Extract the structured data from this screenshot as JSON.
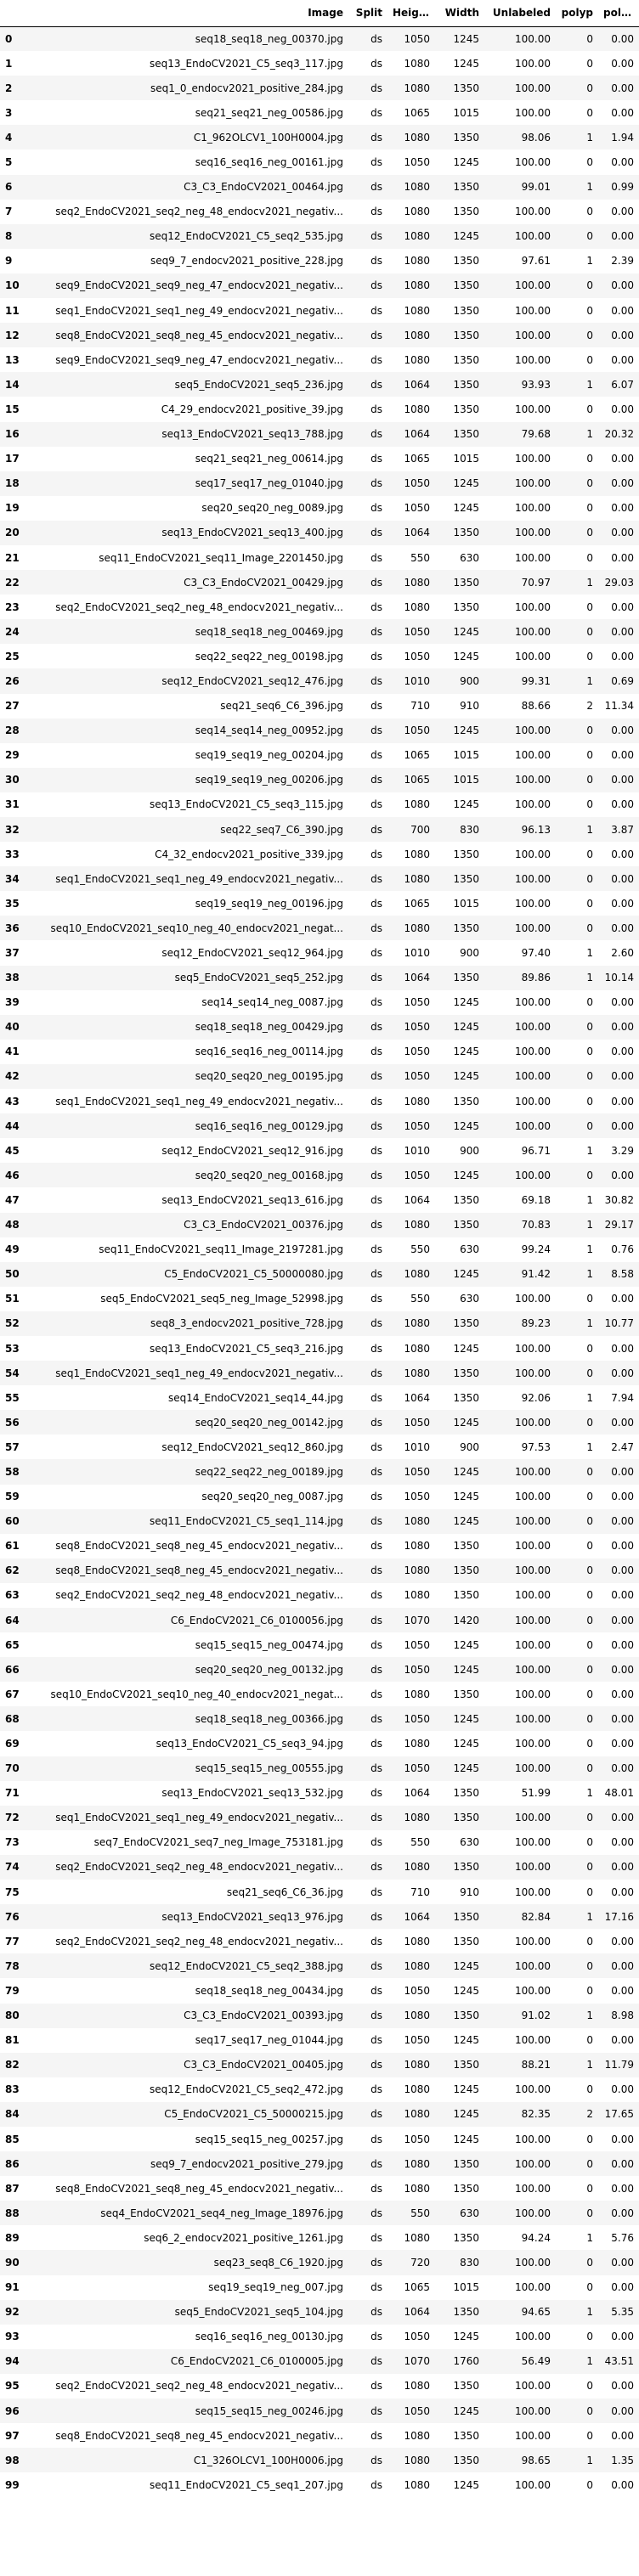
{
  "table": {
    "columns": [
      "",
      "Image",
      "Split",
      "Height",
      "Width",
      "Unlabeled",
      "polyp",
      "polyp"
    ],
    "rows": [
      [
        "0",
        "seq18_seq18_neg_00370.jpg",
        "ds",
        "1050",
        "1245",
        "100.00",
        "0",
        "0.00"
      ],
      [
        "1",
        "seq13_EndoCV2021_C5_seq3_117.jpg",
        "ds",
        "1080",
        "1245",
        "100.00",
        "0",
        "0.00"
      ],
      [
        "2",
        "seq1_0_endocv2021_positive_284.jpg",
        "ds",
        "1080",
        "1350",
        "100.00",
        "0",
        "0.00"
      ],
      [
        "3",
        "seq21_seq21_neg_00586.jpg",
        "ds",
        "1065",
        "1015",
        "100.00",
        "0",
        "0.00"
      ],
      [
        "4",
        "C1_962OLCV1_100H0004.jpg",
        "ds",
        "1080",
        "1350",
        "98.06",
        "1",
        "1.94"
      ],
      [
        "5",
        "seq16_seq16_neg_00161.jpg",
        "ds",
        "1050",
        "1245",
        "100.00",
        "0",
        "0.00"
      ],
      [
        "6",
        "C3_C3_EndoCV2021_00464.jpg",
        "ds",
        "1080",
        "1350",
        "99.01",
        "1",
        "0.99"
      ],
      [
        "7",
        "seq2_EndoCV2021_seq2_neg_48_endocv2021_negativ...",
        "ds",
        "1080",
        "1350",
        "100.00",
        "0",
        "0.00"
      ],
      [
        "8",
        "seq12_EndoCV2021_C5_seq2_535.jpg",
        "ds",
        "1080",
        "1245",
        "100.00",
        "0",
        "0.00"
      ],
      [
        "9",
        "seq9_7_endocv2021_positive_228.jpg",
        "ds",
        "1080",
        "1350",
        "97.61",
        "1",
        "2.39"
      ],
      [
        "10",
        "seq9_EndoCV2021_seq9_neg_47_endocv2021_negativ...",
        "ds",
        "1080",
        "1350",
        "100.00",
        "0",
        "0.00"
      ],
      [
        "11",
        "seq1_EndoCV2021_seq1_neg_49_endocv2021_negativ...",
        "ds",
        "1080",
        "1350",
        "100.00",
        "0",
        "0.00"
      ],
      [
        "12",
        "seq8_EndoCV2021_seq8_neg_45_endocv2021_negativ...",
        "ds",
        "1080",
        "1350",
        "100.00",
        "0",
        "0.00"
      ],
      [
        "13",
        "seq9_EndoCV2021_seq9_neg_47_endocv2021_negativ...",
        "ds",
        "1080",
        "1350",
        "100.00",
        "0",
        "0.00"
      ],
      [
        "14",
        "seq5_EndoCV2021_seq5_236.jpg",
        "ds",
        "1064",
        "1350",
        "93.93",
        "1",
        "6.07"
      ],
      [
        "15",
        "C4_29_endocv2021_positive_39.jpg",
        "ds",
        "1080",
        "1350",
        "100.00",
        "0",
        "0.00"
      ],
      [
        "16",
        "seq13_EndoCV2021_seq13_788.jpg",
        "ds",
        "1064",
        "1350",
        "79.68",
        "1",
        "20.32"
      ],
      [
        "17",
        "seq21_seq21_neg_00614.jpg",
        "ds",
        "1065",
        "1015",
        "100.00",
        "0",
        "0.00"
      ],
      [
        "18",
        "seq17_seq17_neg_01040.jpg",
        "ds",
        "1050",
        "1245",
        "100.00",
        "0",
        "0.00"
      ],
      [
        "19",
        "seq20_seq20_neg_0089.jpg",
        "ds",
        "1050",
        "1245",
        "100.00",
        "0",
        "0.00"
      ],
      [
        "20",
        "seq13_EndoCV2021_seq13_400.jpg",
        "ds",
        "1064",
        "1350",
        "100.00",
        "0",
        "0.00"
      ],
      [
        "21",
        "seq11_EndoCV2021_seq11_Image_2201450.jpg",
        "ds",
        "550",
        "630",
        "100.00",
        "0",
        "0.00"
      ],
      [
        "22",
        "C3_C3_EndoCV2021_00429.jpg",
        "ds",
        "1080",
        "1350",
        "70.97",
        "1",
        "29.03"
      ],
      [
        "23",
        "seq2_EndoCV2021_seq2_neg_48_endocv2021_negativ...",
        "ds",
        "1080",
        "1350",
        "100.00",
        "0",
        "0.00"
      ],
      [
        "24",
        "seq18_seq18_neg_00469.jpg",
        "ds",
        "1050",
        "1245",
        "100.00",
        "0",
        "0.00"
      ],
      [
        "25",
        "seq22_seq22_neg_00198.jpg",
        "ds",
        "1050",
        "1245",
        "100.00",
        "0",
        "0.00"
      ],
      [
        "26",
        "seq12_EndoCV2021_seq12_476.jpg",
        "ds",
        "1010",
        "900",
        "99.31",
        "1",
        "0.69"
      ],
      [
        "27",
        "seq21_seq6_C6_396.jpg",
        "ds",
        "710",
        "910",
        "88.66",
        "2",
        "11.34"
      ],
      [
        "28",
        "seq14_seq14_neg_00952.jpg",
        "ds",
        "1050",
        "1245",
        "100.00",
        "0",
        "0.00"
      ],
      [
        "29",
        "seq19_seq19_neg_00204.jpg",
        "ds",
        "1065",
        "1015",
        "100.00",
        "0",
        "0.00"
      ],
      [
        "30",
        "seq19_seq19_neg_00206.jpg",
        "ds",
        "1065",
        "1015",
        "100.00",
        "0",
        "0.00"
      ],
      [
        "31",
        "seq13_EndoCV2021_C5_seq3_115.jpg",
        "ds",
        "1080",
        "1245",
        "100.00",
        "0",
        "0.00"
      ],
      [
        "32",
        "seq22_seq7_C6_390.jpg",
        "ds",
        "700",
        "830",
        "96.13",
        "1",
        "3.87"
      ],
      [
        "33",
        "C4_32_endocv2021_positive_339.jpg",
        "ds",
        "1080",
        "1350",
        "100.00",
        "0",
        "0.00"
      ],
      [
        "34",
        "seq1_EndoCV2021_seq1_neg_49_endocv2021_negativ...",
        "ds",
        "1080",
        "1350",
        "100.00",
        "0",
        "0.00"
      ],
      [
        "35",
        "seq19_seq19_neg_00196.jpg",
        "ds",
        "1065",
        "1015",
        "100.00",
        "0",
        "0.00"
      ],
      [
        "36",
        "seq10_EndoCV2021_seq10_neg_40_endocv2021_negat...",
        "ds",
        "1080",
        "1350",
        "100.00",
        "0",
        "0.00"
      ],
      [
        "37",
        "seq12_EndoCV2021_seq12_964.jpg",
        "ds",
        "1010",
        "900",
        "97.40",
        "1",
        "2.60"
      ],
      [
        "38",
        "seq5_EndoCV2021_seq5_252.jpg",
        "ds",
        "1064",
        "1350",
        "89.86",
        "1",
        "10.14"
      ],
      [
        "39",
        "seq14_seq14_neg_0087.jpg",
        "ds",
        "1050",
        "1245",
        "100.00",
        "0",
        "0.00"
      ],
      [
        "40",
        "seq18_seq18_neg_00429.jpg",
        "ds",
        "1050",
        "1245",
        "100.00",
        "0",
        "0.00"
      ],
      [
        "41",
        "seq16_seq16_neg_00114.jpg",
        "ds",
        "1050",
        "1245",
        "100.00",
        "0",
        "0.00"
      ],
      [
        "42",
        "seq20_seq20_neg_00195.jpg",
        "ds",
        "1050",
        "1245",
        "100.00",
        "0",
        "0.00"
      ],
      [
        "43",
        "seq1_EndoCV2021_seq1_neg_49_endocv2021_negativ...",
        "ds",
        "1080",
        "1350",
        "100.00",
        "0",
        "0.00"
      ],
      [
        "44",
        "seq16_seq16_neg_00129.jpg",
        "ds",
        "1050",
        "1245",
        "100.00",
        "0",
        "0.00"
      ],
      [
        "45",
        "seq12_EndoCV2021_seq12_916.jpg",
        "ds",
        "1010",
        "900",
        "96.71",
        "1",
        "3.29"
      ],
      [
        "46",
        "seq20_seq20_neg_00168.jpg",
        "ds",
        "1050",
        "1245",
        "100.00",
        "0",
        "0.00"
      ],
      [
        "47",
        "seq13_EndoCV2021_seq13_616.jpg",
        "ds",
        "1064",
        "1350",
        "69.18",
        "1",
        "30.82"
      ],
      [
        "48",
        "C3_C3_EndoCV2021_00376.jpg",
        "ds",
        "1080",
        "1350",
        "70.83",
        "1",
        "29.17"
      ],
      [
        "49",
        "seq11_EndoCV2021_seq11_Image_2197281.jpg",
        "ds",
        "550",
        "630",
        "99.24",
        "1",
        "0.76"
      ],
      [
        "50",
        "C5_EndoCV2021_C5_50000080.jpg",
        "ds",
        "1080",
        "1245",
        "91.42",
        "1",
        "8.58"
      ],
      [
        "51",
        "seq5_EndoCV2021_seq5_neg_Image_52998.jpg",
        "ds",
        "550",
        "630",
        "100.00",
        "0",
        "0.00"
      ],
      [
        "52",
        "seq8_3_endocv2021_positive_728.jpg",
        "ds",
        "1080",
        "1350",
        "89.23",
        "1",
        "10.77"
      ],
      [
        "53",
        "seq13_EndoCV2021_C5_seq3_216.jpg",
        "ds",
        "1080",
        "1245",
        "100.00",
        "0",
        "0.00"
      ],
      [
        "54",
        "seq1_EndoCV2021_seq1_neg_49_endocv2021_negativ...",
        "ds",
        "1080",
        "1350",
        "100.00",
        "0",
        "0.00"
      ],
      [
        "55",
        "seq14_EndoCV2021_seq14_44.jpg",
        "ds",
        "1064",
        "1350",
        "92.06",
        "1",
        "7.94"
      ],
      [
        "56",
        "seq20_seq20_neg_00142.jpg",
        "ds",
        "1050",
        "1245",
        "100.00",
        "0",
        "0.00"
      ],
      [
        "57",
        "seq12_EndoCV2021_seq12_860.jpg",
        "ds",
        "1010",
        "900",
        "97.53",
        "1",
        "2.47"
      ],
      [
        "58",
        "seq22_seq22_neg_00189.jpg",
        "ds",
        "1050",
        "1245",
        "100.00",
        "0",
        "0.00"
      ],
      [
        "59",
        "seq20_seq20_neg_0087.jpg",
        "ds",
        "1050",
        "1245",
        "100.00",
        "0",
        "0.00"
      ],
      [
        "60",
        "seq11_EndoCV2021_C5_seq1_114.jpg",
        "ds",
        "1080",
        "1245",
        "100.00",
        "0",
        "0.00"
      ],
      [
        "61",
        "seq8_EndoCV2021_seq8_neg_45_endocv2021_negativ...",
        "ds",
        "1080",
        "1350",
        "100.00",
        "0",
        "0.00"
      ],
      [
        "62",
        "seq8_EndoCV2021_seq8_neg_45_endocv2021_negativ...",
        "ds",
        "1080",
        "1350",
        "100.00",
        "0",
        "0.00"
      ],
      [
        "63",
        "seq2_EndoCV2021_seq2_neg_48_endocv2021_negativ...",
        "ds",
        "1080",
        "1350",
        "100.00",
        "0",
        "0.00"
      ],
      [
        "64",
        "C6_EndoCV2021_C6_0100056.jpg",
        "ds",
        "1070",
        "1420",
        "100.00",
        "0",
        "0.00"
      ],
      [
        "65",
        "seq15_seq15_neg_00474.jpg",
        "ds",
        "1050",
        "1245",
        "100.00",
        "0",
        "0.00"
      ],
      [
        "66",
        "seq20_seq20_neg_00132.jpg",
        "ds",
        "1050",
        "1245",
        "100.00",
        "0",
        "0.00"
      ],
      [
        "67",
        "seq10_EndoCV2021_seq10_neg_40_endocv2021_negat...",
        "ds",
        "1080",
        "1350",
        "100.00",
        "0",
        "0.00"
      ],
      [
        "68",
        "seq18_seq18_neg_00366.jpg",
        "ds",
        "1050",
        "1245",
        "100.00",
        "0",
        "0.00"
      ],
      [
        "69",
        "seq13_EndoCV2021_C5_seq3_94.jpg",
        "ds",
        "1080",
        "1245",
        "100.00",
        "0",
        "0.00"
      ],
      [
        "70",
        "seq15_seq15_neg_00555.jpg",
        "ds",
        "1050",
        "1245",
        "100.00",
        "0",
        "0.00"
      ],
      [
        "71",
        "seq13_EndoCV2021_seq13_532.jpg",
        "ds",
        "1064",
        "1350",
        "51.99",
        "1",
        "48.01"
      ],
      [
        "72",
        "seq1_EndoCV2021_seq1_neg_49_endocv2021_negativ...",
        "ds",
        "1080",
        "1350",
        "100.00",
        "0",
        "0.00"
      ],
      [
        "73",
        "seq7_EndoCV2021_seq7_neg_Image_753181.jpg",
        "ds",
        "550",
        "630",
        "100.00",
        "0",
        "0.00"
      ],
      [
        "74",
        "seq2_EndoCV2021_seq2_neg_48_endocv2021_negativ...",
        "ds",
        "1080",
        "1350",
        "100.00",
        "0",
        "0.00"
      ],
      [
        "75",
        "seq21_seq6_C6_36.jpg",
        "ds",
        "710",
        "910",
        "100.00",
        "0",
        "0.00"
      ],
      [
        "76",
        "seq13_EndoCV2021_seq13_976.jpg",
        "ds",
        "1064",
        "1350",
        "82.84",
        "1",
        "17.16"
      ],
      [
        "77",
        "seq2_EndoCV2021_seq2_neg_48_endocv2021_negativ...",
        "ds",
        "1080",
        "1350",
        "100.00",
        "0",
        "0.00"
      ],
      [
        "78",
        "seq12_EndoCV2021_C5_seq2_388.jpg",
        "ds",
        "1080",
        "1245",
        "100.00",
        "0",
        "0.00"
      ],
      [
        "79",
        "seq18_seq18_neg_00434.jpg",
        "ds",
        "1050",
        "1245",
        "100.00",
        "0",
        "0.00"
      ],
      [
        "80",
        "C3_C3_EndoCV2021_00393.jpg",
        "ds",
        "1080",
        "1350",
        "91.02",
        "1",
        "8.98"
      ],
      [
        "81",
        "seq17_seq17_neg_01044.jpg",
        "ds",
        "1050",
        "1245",
        "100.00",
        "0",
        "0.00"
      ],
      [
        "82",
        "C3_C3_EndoCV2021_00405.jpg",
        "ds",
        "1080",
        "1350",
        "88.21",
        "1",
        "11.79"
      ],
      [
        "83",
        "seq12_EndoCV2021_C5_seq2_472.jpg",
        "ds",
        "1080",
        "1245",
        "100.00",
        "0",
        "0.00"
      ],
      [
        "84",
        "C5_EndoCV2021_C5_50000215.jpg",
        "ds",
        "1080",
        "1245",
        "82.35",
        "2",
        "17.65"
      ],
      [
        "85",
        "seq15_seq15_neg_00257.jpg",
        "ds",
        "1050",
        "1245",
        "100.00",
        "0",
        "0.00"
      ],
      [
        "86",
        "seq9_7_endocv2021_positive_279.jpg",
        "ds",
        "1080",
        "1350",
        "100.00",
        "0",
        "0.00"
      ],
      [
        "87",
        "seq8_EndoCV2021_seq8_neg_45_endocv2021_negativ...",
        "ds",
        "1080",
        "1350",
        "100.00",
        "0",
        "0.00"
      ],
      [
        "88",
        "seq4_EndoCV2021_seq4_neg_Image_18976.jpg",
        "ds",
        "550",
        "630",
        "100.00",
        "0",
        "0.00"
      ],
      [
        "89",
        "seq6_2_endocv2021_positive_1261.jpg",
        "ds",
        "1080",
        "1350",
        "94.24",
        "1",
        "5.76"
      ],
      [
        "90",
        "seq23_seq8_C6_1920.jpg",
        "ds",
        "720",
        "830",
        "100.00",
        "0",
        "0.00"
      ],
      [
        "91",
        "seq19_seq19_neg_007.jpg",
        "ds",
        "1065",
        "1015",
        "100.00",
        "0",
        "0.00"
      ],
      [
        "92",
        "seq5_EndoCV2021_seq5_104.jpg",
        "ds",
        "1064",
        "1350",
        "94.65",
        "1",
        "5.35"
      ],
      [
        "93",
        "seq16_seq16_neg_00130.jpg",
        "ds",
        "1050",
        "1245",
        "100.00",
        "0",
        "0.00"
      ],
      [
        "94",
        "C6_EndoCV2021_C6_0100005.jpg",
        "ds",
        "1070",
        "1760",
        "56.49",
        "1",
        "43.51"
      ],
      [
        "95",
        "seq2_EndoCV2021_seq2_neg_48_endocv2021_negativ...",
        "ds",
        "1080",
        "1350",
        "100.00",
        "0",
        "0.00"
      ],
      [
        "96",
        "seq15_seq15_neg_00246.jpg",
        "ds",
        "1050",
        "1245",
        "100.00",
        "0",
        "0.00"
      ],
      [
        "97",
        "seq8_EndoCV2021_seq8_neg_45_endocv2021_negativ...",
        "ds",
        "1080",
        "1350",
        "100.00",
        "0",
        "0.00"
      ],
      [
        "98",
        "C1_326OLCV1_100H0006.jpg",
        "ds",
        "1080",
        "1350",
        "98.65",
        "1",
        "1.35"
      ],
      [
        "99",
        "seq11_EndoCV2021_C5_seq1_207.jpg",
        "ds",
        "1080",
        "1245",
        "100.00",
        "0",
        "0.00"
      ]
    ]
  }
}
